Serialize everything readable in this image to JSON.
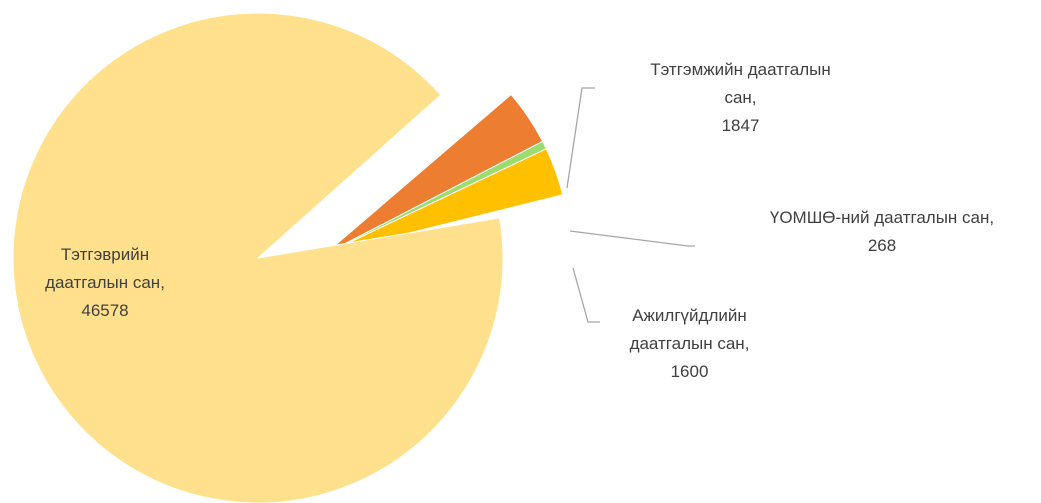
{
  "chart_data": {
    "type": "pie",
    "categories": [
      "Тэтгэврийн даатгалын сан",
      "Тэтгэмжийн даатгалын сан",
      "ҮОМШӨ-ний даатгалын сан",
      "Ажилгүйдлийн даатгалын сан"
    ],
    "values": [
      46578,
      1847,
      268,
      1600
    ],
    "colors": [
      "#FFE08C",
      "#ED7D31",
      "#9BDC6E",
      "#FFC000"
    ],
    "separator": ","
  }
}
